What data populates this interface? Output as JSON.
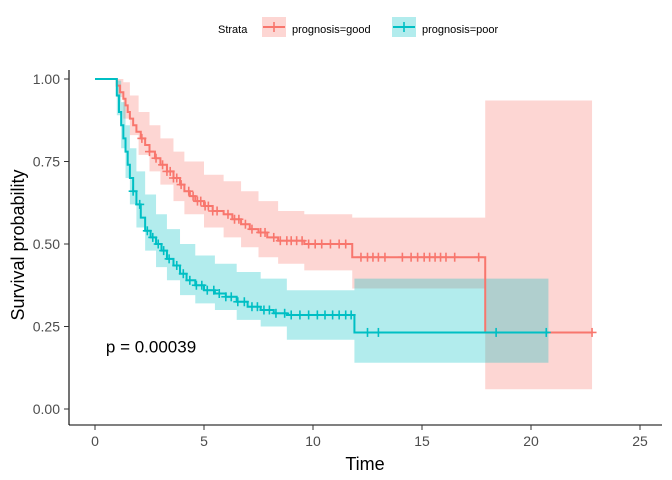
{
  "chart_data": {
    "type": "line",
    "subtype": "kaplan-meier-survival",
    "xlabel": "Time",
    "ylabel": "Survival probability",
    "xlim": [
      0,
      26
    ],
    "ylim": [
      0,
      1.02
    ],
    "x_ticks": [
      0,
      5,
      10,
      15,
      20,
      25
    ],
    "y_ticks": [
      0.0,
      0.25,
      0.5,
      0.75,
      1.0
    ],
    "y_tick_labels": [
      "0.00",
      "0.25",
      "0.50",
      "0.75",
      "1.00"
    ],
    "grid": false,
    "legend": {
      "position": "top",
      "title": "Strata",
      "entries": [
        "prognosis=good",
        "prognosis=poor"
      ]
    },
    "annotation": {
      "text": "p = 0.00039",
      "x": 0.5,
      "y": 0.19
    },
    "series": [
      {
        "name": "prognosis=good",
        "color": "#F8766D",
        "steps": [
          [
            0,
            1.0
          ],
          [
            1.0,
            0.98
          ],
          [
            1.15,
            0.96
          ],
          [
            1.3,
            0.94
          ],
          [
            1.4,
            0.92
          ],
          [
            1.5,
            0.9
          ],
          [
            1.6,
            0.88
          ],
          [
            1.75,
            0.86
          ],
          [
            1.9,
            0.84
          ],
          [
            2.1,
            0.82
          ],
          [
            2.3,
            0.8
          ],
          [
            2.5,
            0.78
          ],
          [
            2.75,
            0.76
          ],
          [
            3.0,
            0.74
          ],
          [
            3.3,
            0.72
          ],
          [
            3.6,
            0.7
          ],
          [
            3.9,
            0.68
          ],
          [
            4.1,
            0.66
          ],
          [
            4.35,
            0.645
          ],
          [
            4.6,
            0.63
          ],
          [
            5.0,
            0.615
          ],
          [
            5.4,
            0.6
          ],
          [
            5.9,
            0.59
          ],
          [
            6.3,
            0.575
          ],
          [
            6.7,
            0.56
          ],
          [
            7.1,
            0.545
          ],
          [
            7.5,
            0.535
          ],
          [
            7.9,
            0.52
          ],
          [
            8.4,
            0.51
          ],
          [
            9.6,
            0.5
          ],
          [
            11.8,
            0.46
          ],
          [
            17.9,
            0.232
          ],
          [
            22.8,
            0.232
          ]
        ],
        "ci": [
          [
            0,
            1.0,
            1.0
          ],
          [
            1.0,
            0.945,
            1.0
          ],
          [
            1.3,
            0.88,
            0.99
          ],
          [
            1.6,
            0.83,
            0.95
          ],
          [
            2.0,
            0.77,
            0.9
          ],
          [
            2.5,
            0.72,
            0.86
          ],
          [
            3.0,
            0.68,
            0.82
          ],
          [
            3.6,
            0.63,
            0.78
          ],
          [
            4.1,
            0.59,
            0.75
          ],
          [
            5.0,
            0.55,
            0.71
          ],
          [
            5.9,
            0.52,
            0.69
          ],
          [
            6.7,
            0.49,
            0.66
          ],
          [
            7.5,
            0.46,
            0.63
          ],
          [
            8.4,
            0.44,
            0.6
          ],
          [
            9.6,
            0.42,
            0.59
          ],
          [
            11.8,
            0.365,
            0.58
          ],
          [
            17.9,
            0.06,
            0.935
          ],
          [
            22.8,
            0.06,
            0.935
          ]
        ],
        "censor_times": [
          2.15,
          2.5,
          2.8,
          3.1,
          3.3,
          3.45,
          3.6,
          3.75,
          3.95,
          4.3,
          4.5,
          4.7,
          4.85,
          5.05,
          5.2,
          5.4,
          5.6,
          6.1,
          6.4,
          6.6,
          6.9,
          7.2,
          7.6,
          7.8,
          8.2,
          8.5,
          8.8,
          9.0,
          9.25,
          9.5,
          9.8,
          10.1,
          10.4,
          10.8,
          11.2,
          11.5,
          12.2,
          12.5,
          12.75,
          13.0,
          13.3,
          14.1,
          14.5,
          14.8,
          15.1,
          15.35,
          15.6,
          15.85,
          16.1,
          16.5,
          17.6,
          22.8
        ]
      },
      {
        "name": "prognosis=poor",
        "color": "#00BFC4",
        "steps": [
          [
            0,
            1.0
          ],
          [
            1.0,
            0.95
          ],
          [
            1.1,
            0.9
          ],
          [
            1.2,
            0.86
          ],
          [
            1.3,
            0.82
          ],
          [
            1.4,
            0.78
          ],
          [
            1.5,
            0.74
          ],
          [
            1.6,
            0.7
          ],
          [
            1.75,
            0.66
          ],
          [
            1.9,
            0.62
          ],
          [
            2.1,
            0.58
          ],
          [
            2.3,
            0.54
          ],
          [
            2.55,
            0.52
          ],
          [
            2.8,
            0.5
          ],
          [
            3.05,
            0.48
          ],
          [
            3.3,
            0.455
          ],
          [
            3.6,
            0.435
          ],
          [
            3.9,
            0.41
          ],
          [
            4.2,
            0.39
          ],
          [
            4.6,
            0.375
          ],
          [
            5.0,
            0.36
          ],
          [
            5.5,
            0.35
          ],
          [
            6.0,
            0.34
          ],
          [
            6.5,
            0.325
          ],
          [
            7.0,
            0.31
          ],
          [
            7.6,
            0.3
          ],
          [
            8.2,
            0.29
          ],
          [
            8.8,
            0.285
          ],
          [
            11.9,
            0.232
          ],
          [
            20.8,
            0.232
          ]
        ],
        "ci": [
          [
            0,
            1.0,
            1.0
          ],
          [
            1.0,
            0.89,
            0.995
          ],
          [
            1.2,
            0.79,
            0.93
          ],
          [
            1.4,
            0.7,
            0.86
          ],
          [
            1.6,
            0.62,
            0.79
          ],
          [
            1.9,
            0.55,
            0.72
          ],
          [
            2.3,
            0.48,
            0.65
          ],
          [
            2.8,
            0.43,
            0.59
          ],
          [
            3.3,
            0.39,
            0.545
          ],
          [
            3.9,
            0.345,
            0.5
          ],
          [
            4.6,
            0.32,
            0.465
          ],
          [
            5.5,
            0.3,
            0.44
          ],
          [
            6.5,
            0.27,
            0.415
          ],
          [
            7.6,
            0.25,
            0.395
          ],
          [
            8.8,
            0.21,
            0.36
          ],
          [
            11.9,
            0.14,
            0.395
          ],
          [
            20.8,
            0.14,
            0.395
          ]
        ],
        "censor_times": [
          1.75,
          2.05,
          2.4,
          2.65,
          2.9,
          3.15,
          3.4,
          3.75,
          4.05,
          4.35,
          4.65,
          4.9,
          5.15,
          5.45,
          5.7,
          6.0,
          6.25,
          6.55,
          6.85,
          7.2,
          7.45,
          7.75,
          8.0,
          8.3,
          8.7,
          9.0,
          9.4,
          9.8,
          10.2,
          10.55,
          10.9,
          11.2,
          11.5,
          11.75,
          12.5,
          13.0,
          18.4,
          20.7
        ]
      }
    ]
  }
}
